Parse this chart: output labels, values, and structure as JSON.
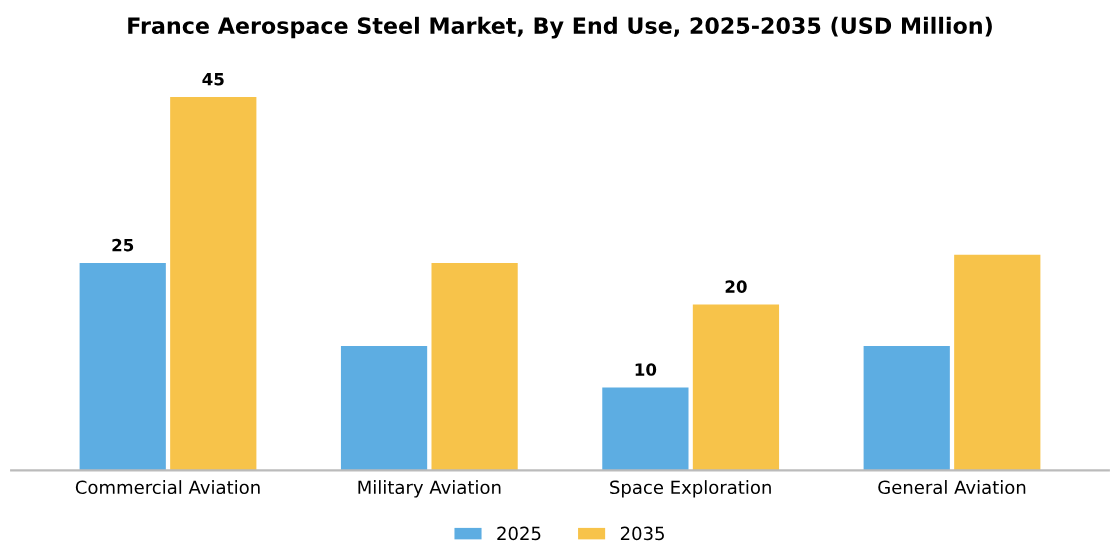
{
  "chart_data": {
    "type": "bar",
    "title": "France Aerospace Steel Market, By End Use, 2025-2035 (USD Million)",
    "categories": [
      "Commercial Aviation",
      "Military Aviation",
      "Space Exploration",
      "General Aviation"
    ],
    "series": [
      {
        "name": "2025",
        "color": "#5dade2",
        "values": [
          25,
          15,
          10,
          15
        ],
        "value_labels": [
          "25",
          null,
          "10",
          null
        ]
      },
      {
        "name": "2035",
        "color": "#f7c34a",
        "values": [
          45,
          25,
          20,
          26
        ],
        "value_labels": [
          "45",
          null,
          "20",
          null
        ]
      }
    ],
    "tick_labels": "x",
    "grid": false,
    "legend": "bottom"
  }
}
